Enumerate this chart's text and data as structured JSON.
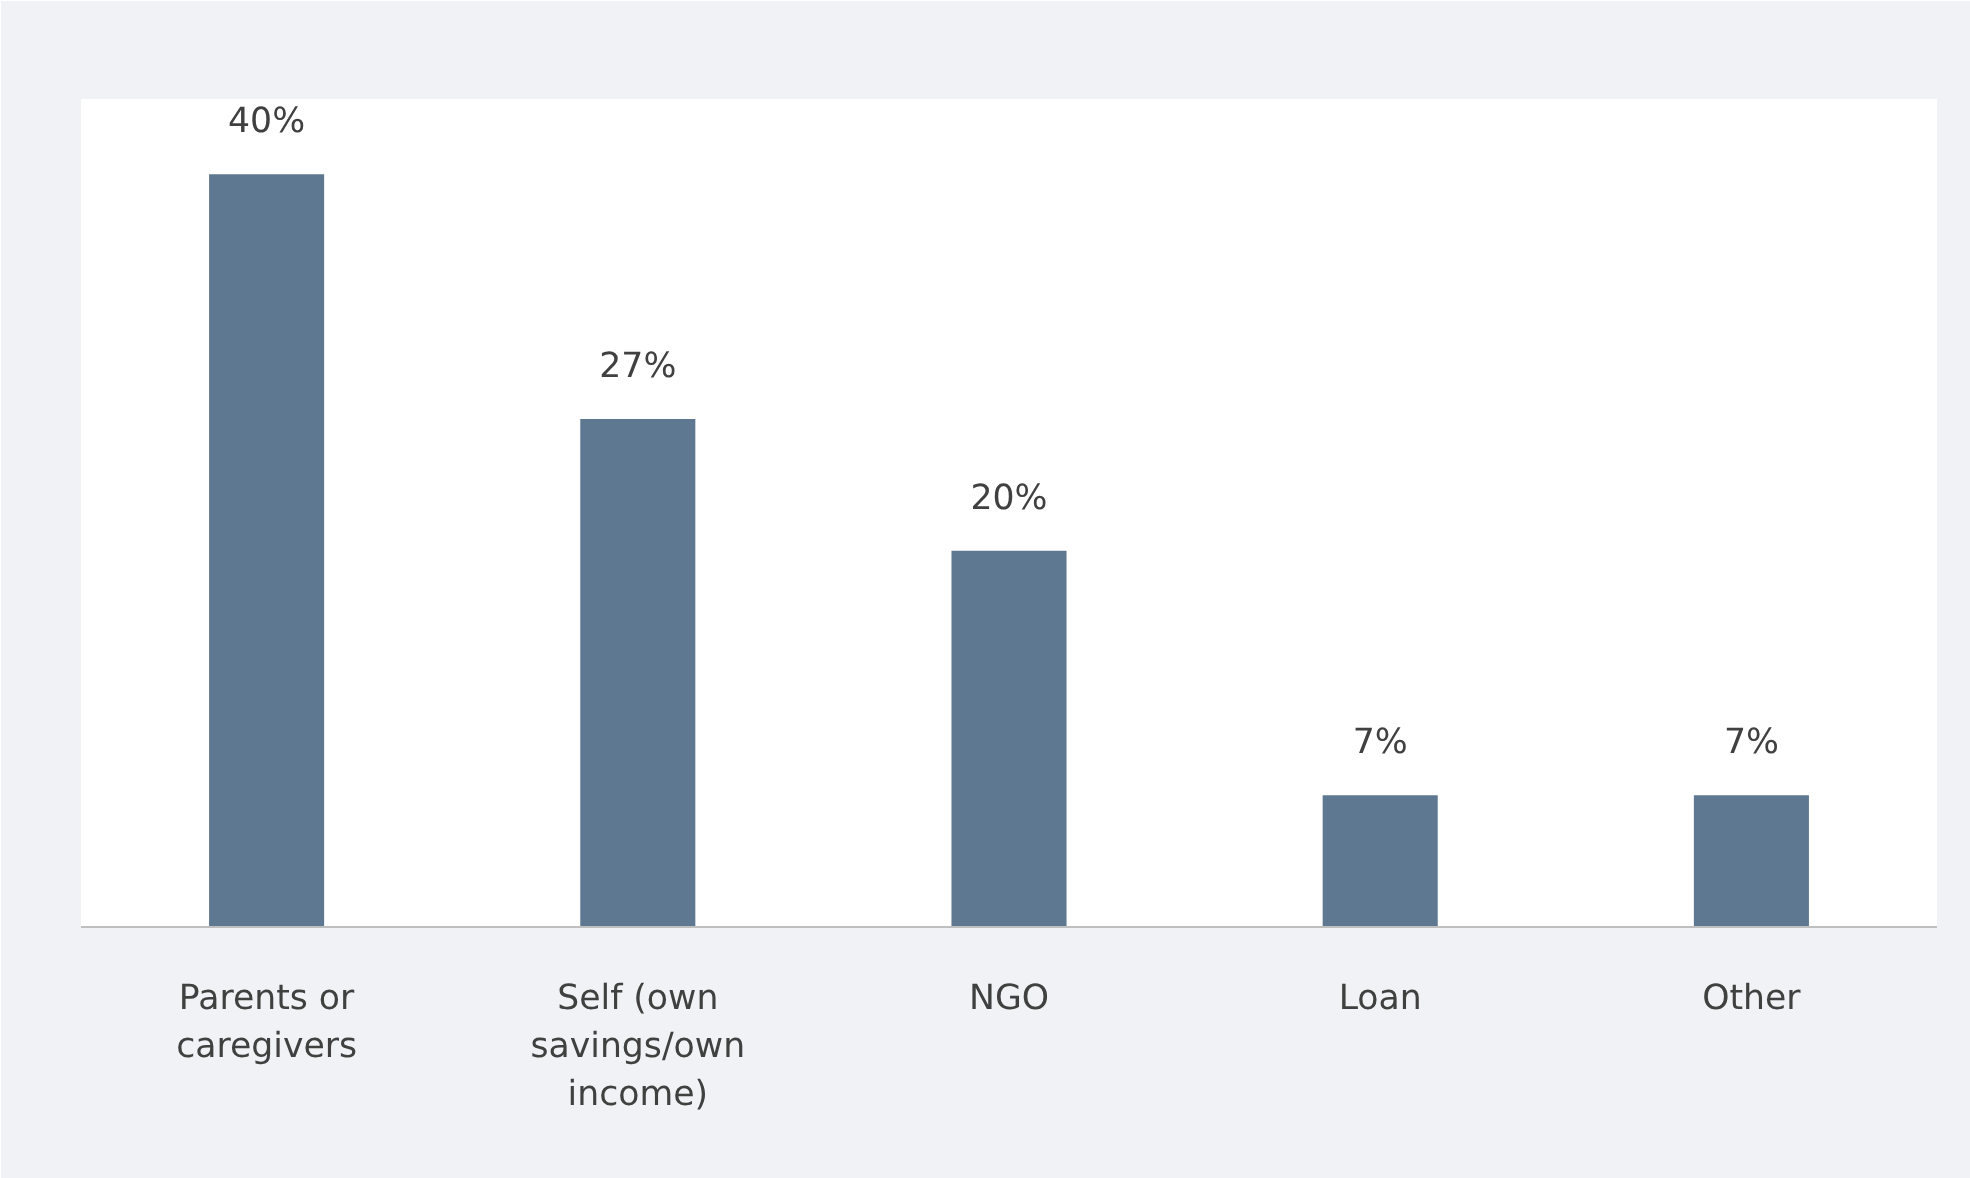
{
  "chart_data": {
    "type": "bar",
    "categories": [
      "Parents or caregivers",
      "Self (own savings/own income)",
      "NGO",
      "Loan",
      "Other"
    ],
    "values": [
      40,
      27,
      20,
      7,
      7
    ],
    "value_labels": [
      "40%",
      "27%",
      "20%",
      "7%",
      "7%"
    ],
    "color": "#5f7891",
    "grid": false
  }
}
